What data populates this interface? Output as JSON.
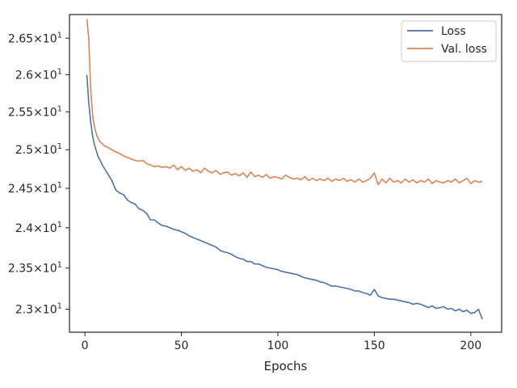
{
  "chart_data": {
    "type": "line",
    "title": "",
    "xlabel": "Epochs",
    "ylabel": "",
    "xlim": [
      -8,
      216
    ],
    "ylim": [
      22.725,
      26.83
    ],
    "y_scale": "log",
    "x_ticks": [
      0,
      50,
      100,
      150,
      200
    ],
    "x_tick_labels": [
      "0",
      "50",
      "100",
      "150",
      "200"
    ],
    "y_ticks": [
      23.0,
      23.5,
      24.0,
      24.5,
      25.0,
      25.5,
      26.0,
      26.5
    ],
    "y_tick_labels": [
      {
        "mantissa": "2.3",
        "base": "10",
        "exp": "1"
      },
      {
        "mantissa": "2.35",
        "base": "10",
        "exp": "1"
      },
      {
        "mantissa": "2.4",
        "base": "10",
        "exp": "1"
      },
      {
        "mantissa": "2.45",
        "base": "10",
        "exp": "1"
      },
      {
        "mantissa": "2.5",
        "base": "10",
        "exp": "1"
      },
      {
        "mantissa": "2.55",
        "base": "10",
        "exp": "1"
      },
      {
        "mantissa": "2.6",
        "base": "10",
        "exp": "1"
      },
      {
        "mantissa": "2.65",
        "base": "10",
        "exp": "1"
      }
    ],
    "grid": false,
    "legend_position": "top-right",
    "colors": {
      "Loss": "#4c72b0",
      "Val. loss": "#dd8452"
    },
    "series": [
      {
        "name": "Loss",
        "x": [
          1,
          2,
          3,
          4,
          5,
          6,
          7,
          8,
          9,
          10,
          12,
          14,
          16,
          18,
          20,
          22,
          24,
          26,
          28,
          30,
          32,
          34,
          36,
          38,
          40,
          42,
          44,
          46,
          48,
          50,
          52,
          54,
          56,
          58,
          60,
          62,
          64,
          66,
          68,
          70,
          72,
          74,
          76,
          78,
          80,
          82,
          84,
          86,
          88,
          90,
          92,
          94,
          96,
          98,
          100,
          102,
          104,
          106,
          108,
          110,
          112,
          114,
          116,
          118,
          120,
          122,
          124,
          126,
          128,
          130,
          132,
          134,
          136,
          138,
          140,
          142,
          144,
          146,
          148,
          150,
          152,
          154,
          156,
          158,
          160,
          162,
          164,
          166,
          168,
          170,
          172,
          174,
          176,
          178,
          180,
          182,
          184,
          186,
          188,
          190,
          192,
          194,
          196,
          198,
          200,
          202,
          204,
          206
        ],
        "values": [
          26.0,
          25.62,
          25.36,
          25.18,
          25.06,
          24.98,
          24.9,
          24.86,
          24.8,
          24.76,
          24.68,
          24.6,
          24.48,
          24.44,
          24.42,
          24.35,
          24.32,
          24.3,
          24.24,
          24.22,
          24.18,
          24.1,
          24.1,
          24.06,
          24.03,
          24.02,
          24.0,
          23.98,
          23.97,
          23.95,
          23.93,
          23.9,
          23.88,
          23.86,
          23.84,
          23.82,
          23.8,
          23.78,
          23.76,
          23.72,
          23.7,
          23.69,
          23.67,
          23.64,
          23.62,
          23.61,
          23.58,
          23.58,
          23.55,
          23.55,
          23.53,
          23.51,
          23.5,
          23.49,
          23.48,
          23.46,
          23.45,
          23.44,
          23.43,
          23.42,
          23.4,
          23.38,
          23.37,
          23.36,
          23.35,
          23.33,
          23.32,
          23.3,
          23.28,
          23.28,
          23.27,
          23.26,
          23.25,
          23.24,
          23.22,
          23.22,
          23.2,
          23.19,
          23.17,
          23.24,
          23.16,
          23.14,
          23.13,
          23.12,
          23.12,
          23.11,
          23.1,
          23.09,
          23.08,
          23.06,
          23.07,
          23.06,
          23.04,
          23.02,
          23.04,
          23.01,
          23.02,
          23.03,
          23.0,
          23.01,
          22.98,
          23.0,
          22.97,
          22.99,
          22.95,
          22.96,
          23.0,
          22.88
        ]
      },
      {
        "name": "Val. loss",
        "x": [
          1,
          2,
          3,
          4,
          5,
          6,
          7,
          8,
          9,
          10,
          12,
          14,
          16,
          18,
          20,
          22,
          24,
          26,
          28,
          30,
          32,
          34,
          36,
          38,
          40,
          42,
          44,
          46,
          48,
          50,
          52,
          54,
          56,
          58,
          60,
          62,
          64,
          66,
          68,
          70,
          72,
          74,
          76,
          78,
          80,
          82,
          84,
          86,
          88,
          90,
          92,
          94,
          96,
          98,
          100,
          102,
          104,
          106,
          108,
          110,
          112,
          114,
          116,
          118,
          120,
          122,
          124,
          126,
          128,
          130,
          132,
          134,
          136,
          138,
          140,
          142,
          144,
          146,
          148,
          150,
          152,
          154,
          156,
          158,
          160,
          162,
          164,
          166,
          168,
          170,
          172,
          174,
          176,
          178,
          180,
          182,
          184,
          186,
          188,
          190,
          192,
          194,
          196,
          198,
          200,
          202,
          204,
          206
        ],
        "values": [
          26.77,
          26.5,
          25.8,
          25.45,
          25.3,
          25.2,
          25.14,
          25.1,
          25.08,
          25.05,
          25.03,
          25.0,
          24.97,
          24.95,
          24.92,
          24.9,
          24.88,
          24.86,
          24.85,
          24.86,
          24.82,
          24.8,
          24.78,
          24.79,
          24.77,
          24.78,
          24.76,
          24.8,
          24.74,
          24.78,
          24.73,
          24.76,
          24.72,
          24.74,
          24.7,
          24.76,
          24.72,
          24.7,
          24.73,
          24.68,
          24.7,
          24.71,
          24.67,
          24.69,
          24.66,
          24.7,
          24.64,
          24.71,
          24.65,
          24.67,
          24.64,
          24.68,
          24.63,
          24.65,
          24.64,
          24.62,
          24.67,
          24.64,
          24.62,
          24.63,
          24.61,
          24.65,
          24.6,
          24.63,
          24.6,
          24.62,
          24.6,
          24.63,
          24.59,
          24.62,
          24.6,
          24.63,
          24.59,
          24.61,
          24.58,
          24.62,
          24.58,
          24.6,
          24.63,
          24.7,
          24.55,
          24.62,
          24.57,
          24.63,
          24.58,
          24.6,
          24.57,
          24.62,
          24.58,
          24.61,
          24.57,
          24.6,
          24.58,
          24.62,
          24.56,
          24.6,
          24.58,
          24.57,
          24.6,
          24.58,
          24.62,
          24.57,
          24.6,
          24.63,
          24.56,
          24.6,
          24.58,
          24.59
        ]
      }
    ]
  }
}
